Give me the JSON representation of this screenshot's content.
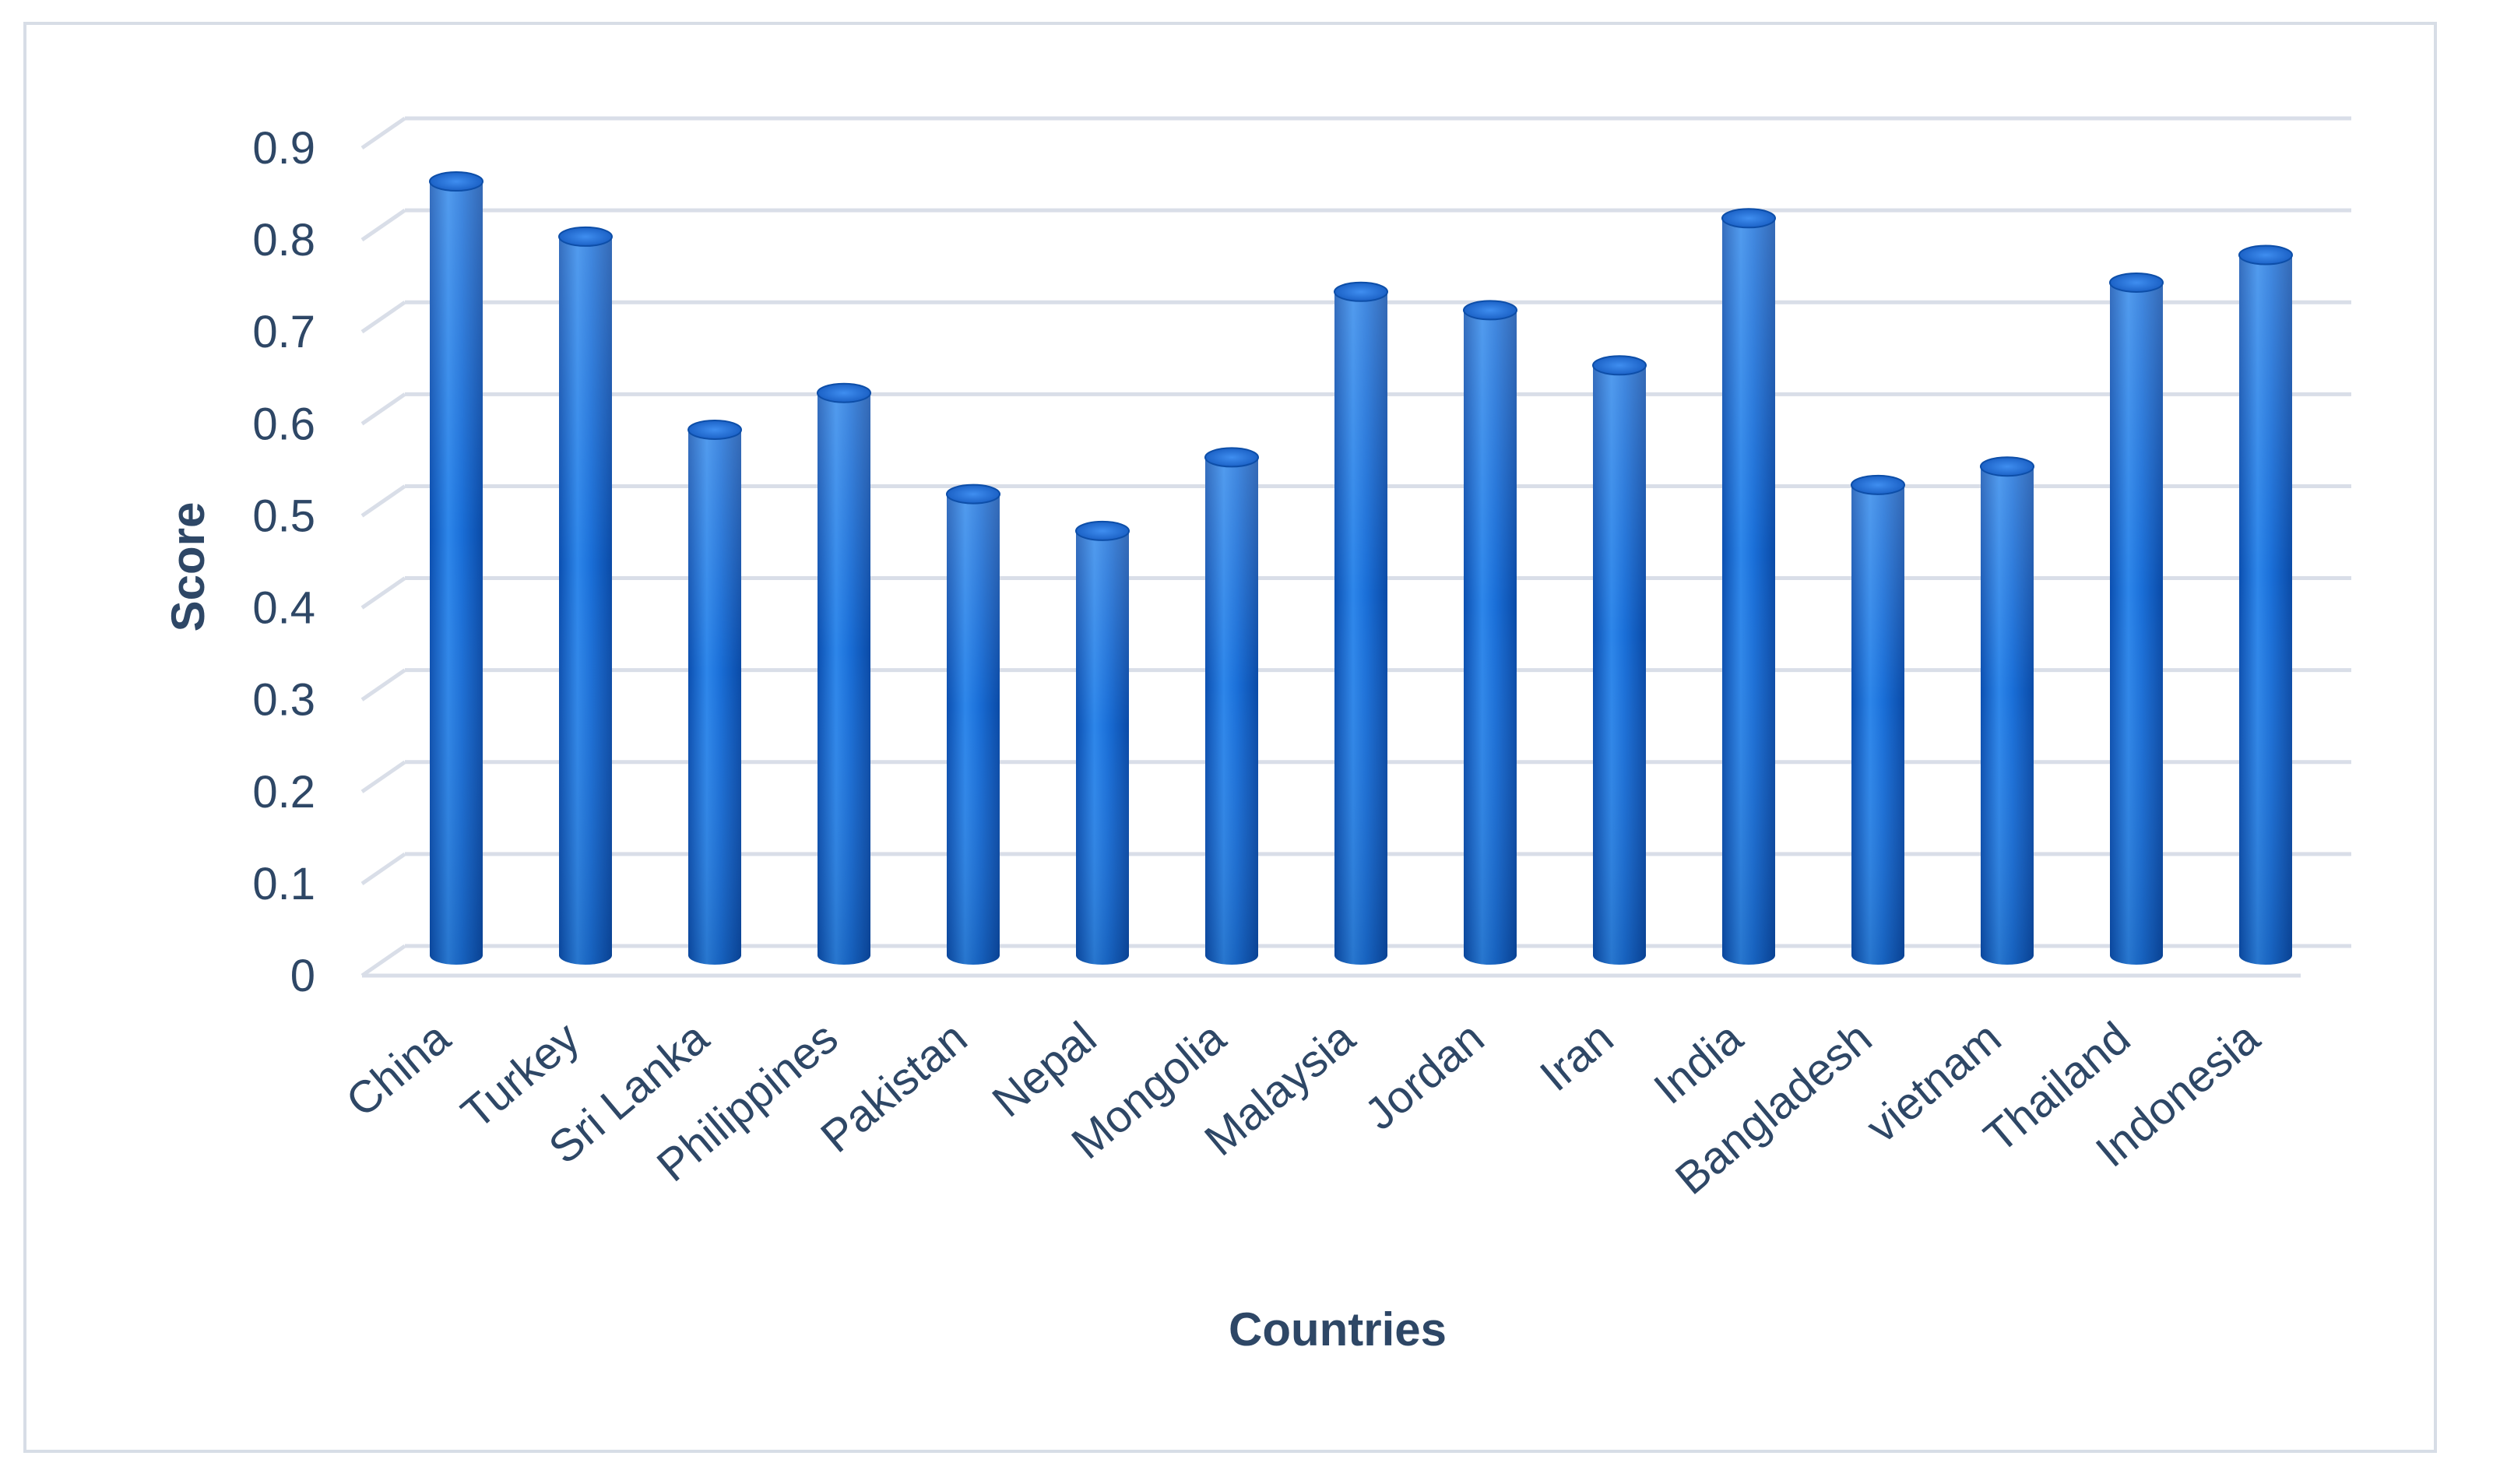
{
  "chart_data": {
    "type": "bar",
    "style": "3d-cylinder",
    "categories": [
      "China",
      "Turkey",
      "Sri Lanka",
      "Philippines",
      "Pakistan",
      "Nepal",
      "Mongolia",
      "Malaysia",
      "Jordan",
      "Iran",
      "India",
      "Bangladesh",
      "vietnam",
      "Thailand",
      "Indonesia"
    ],
    "series": [
      {
        "values": [
          0.85,
          0.79,
          0.58,
          0.62,
          0.51,
          0.47,
          0.55,
          0.73,
          0.71,
          0.65,
          0.81,
          0.52,
          0.54,
          0.74,
          0.77
        ],
        "color": "#1f6fd6"
      }
    ],
    "xlabel": "Countries",
    "ylabel": "Score",
    "ylim": [
      0,
      0.9
    ],
    "yticks": [
      "0",
      "0.1",
      "0.2",
      "0.3",
      "0.4",
      "0.5",
      "0.6",
      "0.7",
      "0.8",
      "0.9"
    ],
    "grid": true,
    "gridline_color": "#d9dee8",
    "legend": "none"
  }
}
